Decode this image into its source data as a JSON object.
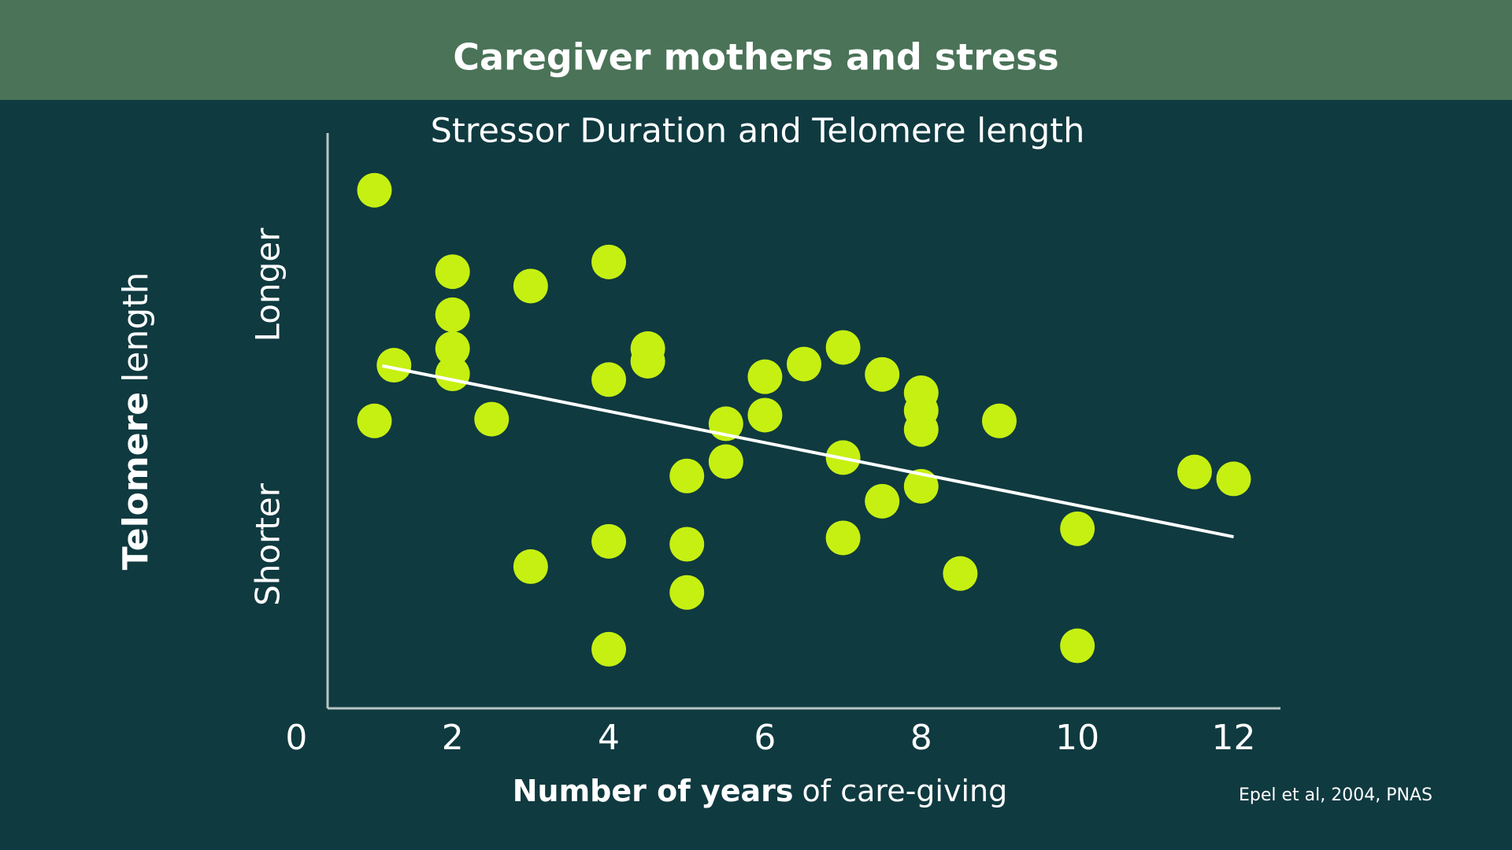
{
  "chart_data": {
    "type": "scatter",
    "title": "Caregiver mothers and stress",
    "subtitle": "Stressor Duration and Telomere length",
    "y_label_bold": "Telomere",
    "y_label_rest": "length",
    "y_high_label": "Longer",
    "y_low_label": "Shorter",
    "x_label_bold": "Number of years",
    "x_label_rest": "of care-giving",
    "source": "Epel et al, 2004, PNAS",
    "color": "#c6f012",
    "x": [
      1,
      2,
      3,
      4,
      2,
      2,
      2,
      1.25,
      1,
      2.5,
      4,
      4.5,
      4.5,
      5.5,
      5.5,
      5,
      6,
      6,
      6.5,
      7,
      7.5,
      8,
      8,
      8,
      9,
      7,
      8,
      7.5,
      7,
      4,
      5,
      3,
      5,
      4,
      8.5,
      10,
      10,
      11.5,
      12
    ],
    "values": [
      90.3,
      76.1,
      73.6,
      77.8,
      68.6,
      62.7,
      58.3,
      59.8,
      50.1,
      50.4,
      57.3,
      62.7,
      60.5,
      49.6,
      43.0,
      40.5,
      57.8,
      51.1,
      60.0,
      62.9,
      58.2,
      55.0,
      51.9,
      48.6,
      50.1,
      43.7,
      38.7,
      36.1,
      29.7,
      29.1,
      28.6,
      24.7,
      20.2,
      10.3,
      23.5,
      31.3,
      10.9,
      41.2,
      40.0
    ],
    "trend_line": {
      "x": [
        1.1,
        12
      ],
      "values": [
        59.7,
        29.9
      ]
    },
    "xlim": [
      0.4,
      12.6
    ],
    "xticks": [
      0,
      2,
      4,
      6,
      8,
      10,
      12
    ],
    "ylim": [
      0,
      100
    ]
  }
}
